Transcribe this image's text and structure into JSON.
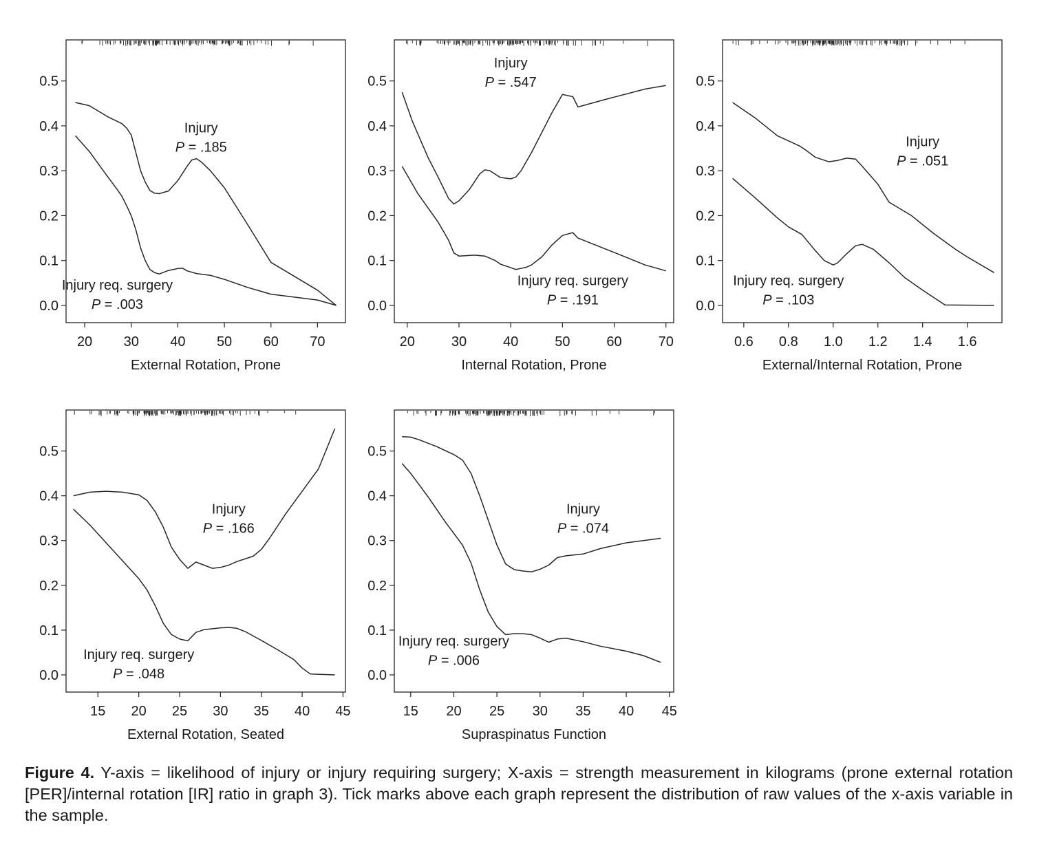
{
  "chart_data": [
    {
      "type": "line",
      "xlabel": "External Rotation, Prone",
      "xticks": [
        20,
        30,
        40,
        50,
        60,
        70
      ],
      "xlim": [
        16,
        76
      ],
      "yticks": [
        "0.0",
        "0.1",
        "0.2",
        "0.3",
        "0.4",
        "0.5"
      ],
      "ylim": [
        -0.02,
        0.57
      ],
      "annotations": [
        {
          "label": "Injury",
          "p_prefix": "P",
          "p_value": " = .185",
          "x": 45,
          "y": 0.385
        },
        {
          "label": "Injury req. surgery",
          "p_prefix": "P",
          "p_value": " = .003",
          "x": 27,
          "y": 0.035
        }
      ],
      "series": [
        {
          "points": [
            [
              18,
              0.452
            ],
            [
              21,
              0.445
            ],
            [
              25,
              0.42
            ],
            [
              28,
              0.405
            ],
            [
              29,
              0.395
            ],
            [
              30,
              0.38
            ],
            [
              31,
              0.34
            ],
            [
              32,
              0.3
            ],
            [
              33,
              0.275
            ],
            [
              34,
              0.256
            ],
            [
              35,
              0.25
            ],
            [
              36,
              0.249
            ],
            [
              38,
              0.255
            ],
            [
              40,
              0.278
            ],
            [
              42,
              0.31
            ],
            [
              43,
              0.324
            ],
            [
              44,
              0.327
            ],
            [
              45,
              0.32
            ],
            [
              47,
              0.3
            ],
            [
              50,
              0.262
            ],
            [
              55,
              0.18
            ],
            [
              60,
              0.096
            ],
            [
              70,
              0.034
            ],
            [
              74,
              0.0
            ]
          ]
        },
        {
          "points": [
            [
              18,
              0.378
            ],
            [
              21,
              0.343
            ],
            [
              24,
              0.3
            ],
            [
              27,
              0.258
            ],
            [
              28,
              0.243
            ],
            [
              29,
              0.222
            ],
            [
              30,
              0.2
            ],
            [
              31,
              0.168
            ],
            [
              32,
              0.128
            ],
            [
              33,
              0.1
            ],
            [
              34,
              0.08
            ],
            [
              35,
              0.073
            ],
            [
              36,
              0.07
            ],
            [
              37,
              0.074
            ],
            [
              38,
              0.078
            ],
            [
              40,
              0.082
            ],
            [
              41,
              0.083
            ],
            [
              42,
              0.077
            ],
            [
              44,
              0.071
            ],
            [
              47,
              0.067
            ],
            [
              50,
              0.058
            ],
            [
              55,
              0.04
            ],
            [
              60,
              0.025
            ],
            [
              70,
              0.012
            ],
            [
              74,
              0.0
            ]
          ]
        }
      ]
    },
    {
      "type": "line",
      "xlabel": "Internal Rotation, Prone",
      "xticks": [
        20,
        30,
        40,
        50,
        60,
        70
      ],
      "xlim": [
        17.5,
        71.5
      ],
      "yticks": [
        "0.0",
        "0.1",
        "0.2",
        "0.3",
        "0.4",
        "0.5"
      ],
      "ylim": [
        -0.02,
        0.57
      ],
      "annotations": [
        {
          "label": "Injury",
          "p_prefix": "P",
          "p_value": " = .547",
          "x": 40,
          "y": 0.53
        },
        {
          "label": "Injury req. surgery",
          "p_prefix": "P",
          "p_value": " = .191",
          "x": 52,
          "y": 0.045
        }
      ],
      "series": [
        {
          "points": [
            [
              19,
              0.475
            ],
            [
              21,
              0.41
            ],
            [
              24,
              0.33
            ],
            [
              26,
              0.285
            ],
            [
              28,
              0.238
            ],
            [
              29,
              0.226
            ],
            [
              30,
              0.233
            ],
            [
              32,
              0.258
            ],
            [
              34,
              0.293
            ],
            [
              35,
              0.302
            ],
            [
              36,
              0.3
            ],
            [
              38,
              0.285
            ],
            [
              40,
              0.282
            ],
            [
              41,
              0.286
            ],
            [
              42,
              0.3
            ],
            [
              44,
              0.34
            ],
            [
              46,
              0.385
            ],
            [
              48,
              0.43
            ],
            [
              50,
              0.47
            ],
            [
              52,
              0.465
            ],
            [
              53,
              0.442
            ],
            [
              58,
              0.458
            ],
            [
              66,
              0.482
            ],
            [
              70,
              0.49
            ]
          ]
        },
        {
          "points": [
            [
              19,
              0.31
            ],
            [
              22,
              0.25
            ],
            [
              26,
              0.185
            ],
            [
              28,
              0.145
            ],
            [
              29,
              0.117
            ],
            [
              30,
              0.11
            ],
            [
              33,
              0.112
            ],
            [
              35,
              0.11
            ],
            [
              37,
              0.1
            ],
            [
              38,
              0.092
            ],
            [
              40,
              0.084
            ],
            [
              41,
              0.08
            ],
            [
              43,
              0.085
            ],
            [
              44,
              0.09
            ],
            [
              46,
              0.108
            ],
            [
              48,
              0.135
            ],
            [
              50,
              0.156
            ],
            [
              52,
              0.162
            ],
            [
              53,
              0.15
            ],
            [
              60,
              0.118
            ],
            [
              66,
              0.09
            ],
            [
              70,
              0.077
            ]
          ]
        }
      ]
    },
    {
      "type": "line",
      "xlabel": "External/Internal Rotation, Prone",
      "xticks": [
        "0.6",
        "0.8",
        "1.0",
        "1.2",
        "1.4",
        "1.6"
      ],
      "xtick_values": [
        0.6,
        0.8,
        1.0,
        1.2,
        1.4,
        1.6
      ],
      "xlim": [
        0.505,
        1.755
      ],
      "yticks": [
        "0.0",
        "0.1",
        "0.2",
        "0.3",
        "0.4",
        "0.5"
      ],
      "ylim": [
        -0.02,
        0.57
      ],
      "annotations": [
        {
          "label": "Injury",
          "p_prefix": "P",
          "p_value": " = .051",
          "x": 1.4,
          "y": 0.355
        },
        {
          "label": "Injury req. surgery",
          "p_prefix": "P",
          "p_value": " = .103",
          "x": 0.8,
          "y": 0.045
        }
      ],
      "series": [
        {
          "points": [
            [
              0.55,
              0.452
            ],
            [
              0.65,
              0.418
            ],
            [
              0.75,
              0.378
            ],
            [
              0.85,
              0.355
            ],
            [
              0.88,
              0.345
            ],
            [
              0.92,
              0.33
            ],
            [
              0.98,
              0.32
            ],
            [
              1.02,
              0.323
            ],
            [
              1.06,
              0.328
            ],
            [
              1.1,
              0.326
            ],
            [
              1.13,
              0.31
            ],
            [
              1.2,
              0.27
            ],
            [
              1.25,
              0.23
            ],
            [
              1.35,
              0.2
            ],
            [
              1.45,
              0.16
            ],
            [
              1.55,
              0.124
            ],
            [
              1.6,
              0.108
            ],
            [
              1.72,
              0.073
            ]
          ]
        },
        {
          "points": [
            [
              0.55,
              0.283
            ],
            [
              0.65,
              0.24
            ],
            [
              0.75,
              0.195
            ],
            [
              0.8,
              0.175
            ],
            [
              0.86,
              0.158
            ],
            [
              0.92,
              0.122
            ],
            [
              0.96,
              0.1
            ],
            [
              1.0,
              0.09
            ],
            [
              1.02,
              0.095
            ],
            [
              1.06,
              0.115
            ],
            [
              1.1,
              0.133
            ],
            [
              1.13,
              0.136
            ],
            [
              1.18,
              0.125
            ],
            [
              1.25,
              0.095
            ],
            [
              1.32,
              0.062
            ],
            [
              1.4,
              0.034
            ],
            [
              1.5,
              0.001
            ],
            [
              1.72,
              0.0
            ]
          ]
        }
      ]
    },
    {
      "type": "line",
      "xlabel": "External Rotation, Seated",
      "xticks": [
        15,
        20,
        25,
        30,
        35,
        40,
        45
      ],
      "xlim": [
        11.1,
        45.3
      ],
      "yticks": [
        "0.0",
        "0.1",
        "0.2",
        "0.3",
        "0.4",
        "0.5"
      ],
      "ylim": [
        -0.02,
        0.57
      ],
      "annotations": [
        {
          "label": "Injury",
          "p_prefix": "P",
          "p_value": " = .166",
          "x": 31,
          "y": 0.36
        },
        {
          "label": "Injury req. surgery",
          "p_prefix": "P",
          "p_value": " = .048",
          "x": 20,
          "y": 0.035
        }
      ],
      "series": [
        {
          "points": [
            [
              12,
              0.4
            ],
            [
              14,
              0.408
            ],
            [
              16,
              0.41
            ],
            [
              18,
              0.408
            ],
            [
              20,
              0.402
            ],
            [
              21,
              0.39
            ],
            [
              22,
              0.365
            ],
            [
              23,
              0.33
            ],
            [
              24,
              0.285
            ],
            [
              25,
              0.258
            ],
            [
              26,
              0.238
            ],
            [
              27,
              0.252
            ],
            [
              28,
              0.245
            ],
            [
              29,
              0.238
            ],
            [
              30,
              0.24
            ],
            [
              31,
              0.245
            ],
            [
              32,
              0.253
            ],
            [
              34,
              0.265
            ],
            [
              35,
              0.28
            ],
            [
              36,
              0.305
            ],
            [
              38,
              0.36
            ],
            [
              40,
              0.41
            ],
            [
              42,
              0.46
            ],
            [
              44,
              0.55
            ]
          ]
        },
        {
          "points": [
            [
              12,
              0.37
            ],
            [
              14,
              0.335
            ],
            [
              16,
              0.295
            ],
            [
              18,
              0.255
            ],
            [
              20,
              0.215
            ],
            [
              21,
              0.19
            ],
            [
              22,
              0.155
            ],
            [
              23,
              0.115
            ],
            [
              24,
              0.09
            ],
            [
              25,
              0.08
            ],
            [
              26,
              0.076
            ],
            [
              27,
              0.095
            ],
            [
              28,
              0.101
            ],
            [
              30,
              0.105
            ],
            [
              31,
              0.106
            ],
            [
              32,
              0.104
            ],
            [
              33,
              0.097
            ],
            [
              35,
              0.077
            ],
            [
              37,
              0.056
            ],
            [
              39,
              0.034
            ],
            [
              40,
              0.015
            ],
            [
              41,
              0.002
            ],
            [
              44,
              0.0
            ]
          ]
        }
      ]
    },
    {
      "type": "line",
      "xlabel": "Supraspinatus Function",
      "xticks": [
        15,
        20,
        25,
        30,
        35,
        40,
        45
      ],
      "xlim": [
        13.1,
        45.5
      ],
      "yticks": [
        "0.0",
        "0.1",
        "0.2",
        "0.3",
        "0.4",
        "0.5"
      ],
      "ylim": [
        -0.02,
        0.57
      ],
      "annotations": [
        {
          "label": "Injury",
          "p_prefix": "P",
          "p_value": " = .074",
          "x": 35,
          "y": 0.36
        },
        {
          "label": "Injury req. surgery",
          "p_prefix": "P",
          "p_value": " = .006",
          "x": 20,
          "y": 0.065
        }
      ],
      "series": [
        {
          "points": [
            [
              14,
              0.532
            ],
            [
              15,
              0.531
            ],
            [
              16,
              0.525
            ],
            [
              18,
              0.51
            ],
            [
              20,
              0.492
            ],
            [
              21,
              0.48
            ],
            [
              22,
              0.45
            ],
            [
              23,
              0.4
            ],
            [
              24,
              0.345
            ],
            [
              25,
              0.29
            ],
            [
              26,
              0.248
            ],
            [
              27,
              0.235
            ],
            [
              28,
              0.232
            ],
            [
              29,
              0.23
            ],
            [
              30,
              0.236
            ],
            [
              31,
              0.245
            ],
            [
              32,
              0.262
            ],
            [
              33,
              0.266
            ],
            [
              35,
              0.27
            ],
            [
              37,
              0.282
            ],
            [
              40,
              0.295
            ],
            [
              44,
              0.305
            ]
          ]
        },
        {
          "points": [
            [
              14,
              0.472
            ],
            [
              15,
              0.45
            ],
            [
              17,
              0.398
            ],
            [
              19,
              0.342
            ],
            [
              21,
              0.29
            ],
            [
              22,
              0.25
            ],
            [
              23,
              0.19
            ],
            [
              24,
              0.14
            ],
            [
              25,
              0.108
            ],
            [
              26,
              0.09
            ],
            [
              27,
              0.092
            ],
            [
              28,
              0.092
            ],
            [
              29,
              0.09
            ],
            [
              30,
              0.082
            ],
            [
              31,
              0.073
            ],
            [
              32,
              0.08
            ],
            [
              33,
              0.082
            ],
            [
              35,
              0.074
            ],
            [
              37,
              0.064
            ],
            [
              40,
              0.053
            ],
            [
              42,
              0.043
            ],
            [
              44,
              0.028
            ]
          ]
        }
      ]
    }
  ],
  "caption": {
    "label": "Figure 4.",
    "text": " Y-axis = likelihood of injury or injury requiring surgery; X-axis = strength measurement in kilograms (prone external rotation [PER]/internal rotation [IR] ratio in graph 3). Tick marks above each graph represent the distribution of raw values of the x-axis variable in the sample."
  }
}
